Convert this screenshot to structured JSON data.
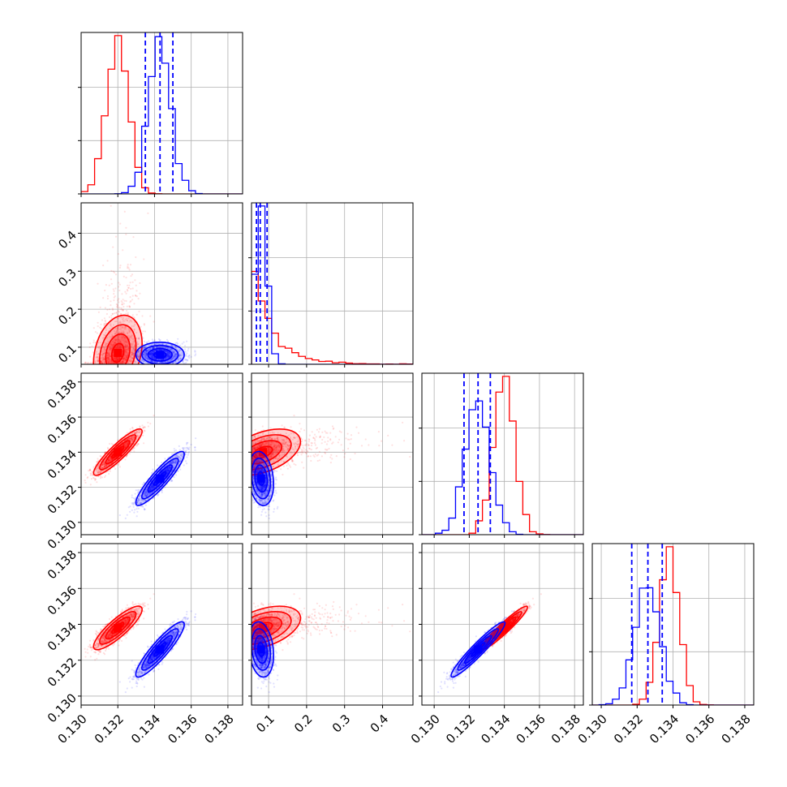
{
  "colors": {
    "red": "#ff0000",
    "blue": "#0000ff",
    "grid": "#b0b0b0",
    "axis": "#000000"
  },
  "chart_data": {
    "type": "scatter",
    "subtype": "corner-plot",
    "grid": true,
    "n_params": 4,
    "params": [
      {
        "range": [
          0.13,
          0.1388
        ],
        "ticks": [
          0.13,
          0.132,
          0.134,
          0.136,
          0.138
        ],
        "tick_labels": [
          "0.130",
          "0.132",
          "0.134",
          "0.136",
          "0.138"
        ]
      },
      {
        "range": [
          0.055,
          0.48
        ],
        "ticks": [
          0.1,
          0.2,
          0.3,
          0.4
        ],
        "tick_labels": [
          "0.1",
          "0.2",
          "0.3",
          "0.4"
        ]
      },
      {
        "range": [
          0.1293,
          0.1385
        ],
        "ticks": [
          0.13,
          0.132,
          0.134,
          0.136,
          0.138
        ],
        "tick_labels": [
          "0.130",
          "0.132",
          "0.134",
          "0.136",
          "0.138"
        ]
      },
      {
        "range": [
          0.1295,
          0.1385
        ],
        "ticks": [
          0.13,
          0.132,
          0.134,
          0.136,
          0.138
        ],
        "tick_labels": [
          "0.130",
          "0.132",
          "0.134",
          "0.136",
          "0.138"
        ]
      }
    ],
    "series": [
      {
        "color": "red",
        "mean": [
          0.132,
          0.085,
          0.134,
          0.1338
        ],
        "std": [
          0.0006,
          0.045,
          0.0006,
          0.00055
        ],
        "corr": [
          [
            1,
            0.25,
            0.9,
            0.85
          ],
          [
            0.25,
            1,
            0.45,
            0.45
          ],
          [
            0.9,
            0.45,
            1,
            0.95
          ],
          [
            0.85,
            0.45,
            0.95,
            1
          ]
        ]
      },
      {
        "color": "blue",
        "mean": [
          0.1343,
          0.08,
          0.1325,
          0.1326
        ],
        "std": [
          0.0006,
          0.015,
          0.0007,
          0.0007
        ],
        "corr": [
          [
            1,
            0.0,
            0.9,
            0.9
          ],
          [
            0.0,
            1,
            -0.2,
            -0.2
          ],
          [
            0.9,
            -0.2,
            1,
            0.95
          ],
          [
            0.9,
            -0.2,
            0.95,
            1
          ]
        ]
      }
    ],
    "quantile_lines": [
      {
        "param": 0,
        "values": [
          0.1335,
          0.1343,
          0.135
        ]
      },
      {
        "param": 1,
        "values": [
          0.068,
          0.078,
          0.096
        ]
      },
      {
        "param": 2,
        "values": [
          0.1317,
          0.1325,
          0.1332
        ]
      },
      {
        "param": 3,
        "values": [
          0.1317,
          0.1326,
          0.1334
        ]
      }
    ]
  }
}
